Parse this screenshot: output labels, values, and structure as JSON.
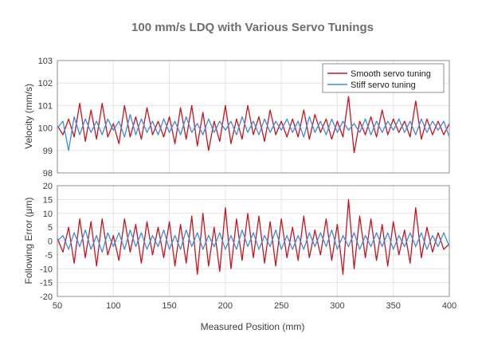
{
  "chart_data": {
    "type": "line",
    "title": "100 mm/s LDQ with Various Servo Tunings",
    "xlabel": "Measured Position (mm)",
    "xlim": [
      50,
      400
    ],
    "xticks": [
      50,
      100,
      150,
      200,
      250,
      300,
      350,
      400
    ],
    "grid": true,
    "colors": {
      "smooth": "#c8141e",
      "stiff": "#3c8ce6"
    },
    "legend": {
      "placement": "top-right",
      "entries": [
        "Smooth servo tuning",
        "Stiff servo tuning"
      ]
    },
    "panels": [
      {
        "ylabel": "Velocity (mm/s)",
        "ylim": [
          98,
          103
        ],
        "yticks": [
          98,
          99,
          100,
          101,
          102,
          103
        ],
        "series": [
          {
            "name": "Smooth servo tuning",
            "x": [
              50,
              55,
              60,
              65,
              70,
              75,
              80,
              85,
              90,
              95,
              100,
              105,
              110,
              115,
              120,
              125,
              130,
              135,
              140,
              145,
              150,
              155,
              160,
              165,
              170,
              175,
              180,
              185,
              190,
              195,
              200,
              205,
              210,
              215,
              220,
              225,
              230,
              235,
              240,
              245,
              250,
              255,
              260,
              265,
              270,
              275,
              280,
              285,
              290,
              295,
              300,
              305,
              310,
              315,
              320,
              325,
              330,
              335,
              340,
              345,
              350,
              355,
              360,
              365,
              370,
              375,
              380,
              385,
              390,
              395,
              400
            ],
            "y": [
              100.1,
              99.7,
              100.4,
              99.6,
              101.1,
              99.4,
              100.8,
              99.5,
              101.1,
              99.6,
              100.2,
              99.3,
              101.0,
              99.6,
              100.5,
              99.5,
              100.9,
              99.7,
              100.3,
              99.6,
              100.5,
              99.3,
              100.9,
              99.5,
              101.0,
              99.2,
              100.7,
              99.0,
              100.3,
              99.4,
              101.0,
              99.3,
              100.4,
              99.5,
              101.0,
              99.7,
              100.5,
              99.4,
              100.8,
              99.7,
              100.3,
              99.6,
              100.4,
              99.6,
              100.8,
              99.5,
              100.6,
              99.8,
              100.4,
              99.5,
              100.3,
              99.6,
              101.4,
              98.9,
              100.3,
              99.7,
              100.5,
              99.6,
              100.8,
              99.7,
              100.4,
              99.8,
              100.3,
              99.6,
              101.2,
              99.5,
              100.4,
              99.7,
              100.3,
              99.7,
              100.2
            ]
          },
          {
            "name": "Stiff servo tuning",
            "x": [
              50,
              55,
              60,
              65,
              70,
              75,
              80,
              85,
              90,
              95,
              100,
              105,
              110,
              115,
              120,
              125,
              130,
              135,
              140,
              145,
              150,
              155,
              160,
              165,
              170,
              175,
              180,
              185,
              190,
              195,
              200,
              205,
              210,
              215,
              220,
              225,
              230,
              235,
              240,
              245,
              250,
              255,
              260,
              265,
              270,
              275,
              280,
              285,
              290,
              295,
              300,
              305,
              310,
              315,
              320,
              325,
              330,
              335,
              340,
              345,
              350,
              355,
              360,
              365,
              370,
              375,
              380,
              385,
              390,
              395,
              400
            ],
            "y": [
              100.0,
              100.3,
              99.0,
              100.5,
              99.7,
              100.4,
              99.8,
              100.3,
              99.7,
              100.4,
              99.9,
              100.3,
              99.6,
              100.6,
              99.7,
              100.4,
              99.8,
              100.3,
              99.7,
              100.4,
              99.8,
              100.3,
              99.7,
              100.5,
              99.8,
              100.2,
              99.7,
              100.4,
              99.8,
              100.3,
              99.9,
              100.3,
              99.7,
              100.5,
              99.8,
              100.3,
              99.7,
              100.4,
              99.8,
              100.3,
              99.9,
              100.4,
              99.8,
              100.3,
              99.6,
              100.5,
              99.8,
              100.3,
              99.7,
              100.4,
              99.8,
              100.3,
              99.9,
              100.2,
              99.8,
              100.4,
              99.7,
              100.3,
              99.8,
              100.3,
              99.9,
              100.4,
              99.8,
              100.3,
              99.7,
              100.4,
              99.8,
              100.3,
              99.9,
              100.3,
              99.6
            ]
          }
        ]
      },
      {
        "ylabel": "Following Error (μm)",
        "ylim": [
          -20,
          20
        ],
        "yticks": [
          -20,
          -15,
          -10,
          -5,
          0,
          5,
          10,
          15,
          20
        ],
        "series": [
          {
            "name": "Smooth servo tuning",
            "x": [
              50,
              55,
              60,
              65,
              70,
              75,
              80,
              85,
              90,
              95,
              100,
              105,
              110,
              115,
              120,
              125,
              130,
              135,
              140,
              145,
              150,
              155,
              160,
              165,
              170,
              175,
              180,
              185,
              190,
              195,
              200,
              205,
              210,
              215,
              220,
              225,
              230,
              235,
              240,
              245,
              250,
              255,
              260,
              265,
              270,
              275,
              280,
              285,
              290,
              295,
              300,
              305,
              310,
              315,
              320,
              325,
              330,
              335,
              340,
              345,
              350,
              355,
              360,
              365,
              370,
              375,
              380,
              385,
              390,
              395,
              400
            ],
            "y": [
              1,
              -4,
              5,
              -8,
              8,
              -6,
              7,
              -9,
              8,
              -5,
              2,
              -7,
              8,
              -4,
              6,
              -8,
              7,
              -5,
              5,
              -6,
              7,
              -9,
              6,
              -8,
              9,
              -12,
              10,
              -9,
              5,
              -11,
              12,
              -10,
              8,
              -7,
              10,
              -6,
              9,
              -8,
              7,
              -9,
              8,
              -6,
              5,
              -7,
              9,
              -6,
              4,
              -5,
              8,
              -7,
              6,
              -12,
              15,
              -10,
              9,
              -6,
              8,
              -7,
              6,
              -9,
              7,
              -5,
              4,
              -8,
              12,
              -6,
              5,
              -4,
              3,
              -3,
              -1
            ]
          },
          {
            "name": "Stiff servo tuning",
            "x": [
              50,
              55,
              60,
              65,
              70,
              75,
              80,
              85,
              90,
              95,
              100,
              105,
              110,
              115,
              120,
              125,
              130,
              135,
              140,
              145,
              150,
              155,
              160,
              165,
              170,
              175,
              180,
              185,
              190,
              195,
              200,
              205,
              210,
              215,
              220,
              225,
              230,
              235,
              240,
              245,
              250,
              255,
              260,
              265,
              270,
              275,
              280,
              285,
              290,
              295,
              300,
              305,
              310,
              315,
              320,
              325,
              330,
              335,
              340,
              345,
              350,
              355,
              360,
              365,
              370,
              375,
              380,
              385,
              390,
              395,
              400
            ],
            "y": [
              0,
              2,
              -3,
              3,
              -2,
              4,
              -3,
              2,
              -4,
              3,
              -2,
              3,
              -3,
              4,
              -2,
              3,
              -3,
              2,
              -2,
              4,
              -3,
              2,
              -3,
              4,
              -2,
              3,
              -3,
              2,
              -2,
              3,
              -3,
              2,
              -3,
              4,
              -2,
              3,
              -3,
              2,
              -2,
              4,
              -3,
              2,
              -3,
              2,
              -3,
              3,
              -2,
              3,
              -2,
              4,
              -3,
              2,
              -2,
              3,
              -3,
              2,
              -2,
              3,
              -2,
              3,
              -3,
              2,
              -2,
              3,
              -2,
              3,
              -3,
              2,
              -2,
              3,
              -2
            ]
          }
        ]
      }
    ]
  }
}
